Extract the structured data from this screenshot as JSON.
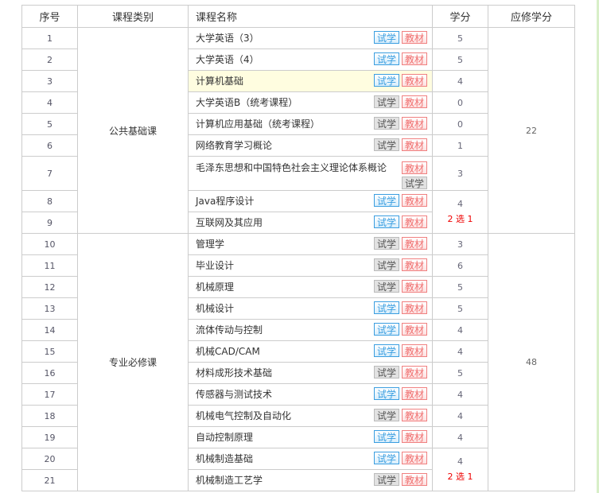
{
  "headers": {
    "no": "序号",
    "category": "课程类别",
    "name": "课程名称",
    "credit": "学分",
    "required": "应修学分"
  },
  "buttons": {
    "trial": "试学",
    "textbook": "教材"
  },
  "groups": [
    {
      "category": "公共基础课",
      "required_credit": "22",
      "rows": [
        {
          "no": "1",
          "name": "大学英语（3）",
          "trial_enabled": true,
          "credit": "5"
        },
        {
          "no": "2",
          "name": "大学英语（4）",
          "trial_enabled": true,
          "credit": "5"
        },
        {
          "no": "3",
          "name": "计算机基础",
          "trial_enabled": true,
          "credit": "4",
          "highlighted": true
        },
        {
          "no": "4",
          "name": "大学英语B（统考课程）",
          "trial_enabled": false,
          "credit": "0"
        },
        {
          "no": "5",
          "name": "计算机应用基础（统考课程）",
          "trial_enabled": false,
          "credit": "0"
        },
        {
          "no": "6",
          "name": "网络教育学习概论",
          "trial_enabled": false,
          "credit": "1"
        },
        {
          "no": "7",
          "name": "毛泽东思想和中国特色社会主义理论体系概论",
          "trial_enabled": false,
          "credit": "3",
          "stacked": true
        },
        {
          "no": "8",
          "name": "Java程序设计",
          "trial_enabled": true,
          "credit": "4",
          "choice": "2 选 1",
          "span": 2
        },
        {
          "no": "9",
          "name": "互联网及其应用",
          "trial_enabled": true
        }
      ]
    },
    {
      "category": "专业必修课",
      "required_credit": "48",
      "rows": [
        {
          "no": "10",
          "name": "管理学",
          "trial_enabled": false,
          "credit": "3"
        },
        {
          "no": "11",
          "name": "毕业设计",
          "trial_enabled": false,
          "credit": "6"
        },
        {
          "no": "12",
          "name": "机械原理",
          "trial_enabled": false,
          "credit": "5"
        },
        {
          "no": "13",
          "name": "机械设计",
          "trial_enabled": true,
          "credit": "5"
        },
        {
          "no": "14",
          "name": "流体传动与控制",
          "trial_enabled": true,
          "credit": "4"
        },
        {
          "no": "15",
          "name": "机械CAD/CAM",
          "trial_enabled": true,
          "credit": "4"
        },
        {
          "no": "16",
          "name": "材料成形技术基础",
          "trial_enabled": false,
          "credit": "5"
        },
        {
          "no": "17",
          "name": "传感器与测试技术",
          "trial_enabled": true,
          "credit": "4"
        },
        {
          "no": "18",
          "name": "机械电气控制及自动化",
          "trial_enabled": false,
          "credit": "4"
        },
        {
          "no": "19",
          "name": "自动控制原理",
          "trial_enabled": true,
          "credit": "4"
        },
        {
          "no": "20",
          "name": "机械制造基础",
          "trial_enabled": true,
          "credit": "4",
          "choice": "2 选 1",
          "span": 2
        },
        {
          "no": "21",
          "name": "机械制造工艺学",
          "trial_enabled": false
        }
      ]
    }
  ]
}
